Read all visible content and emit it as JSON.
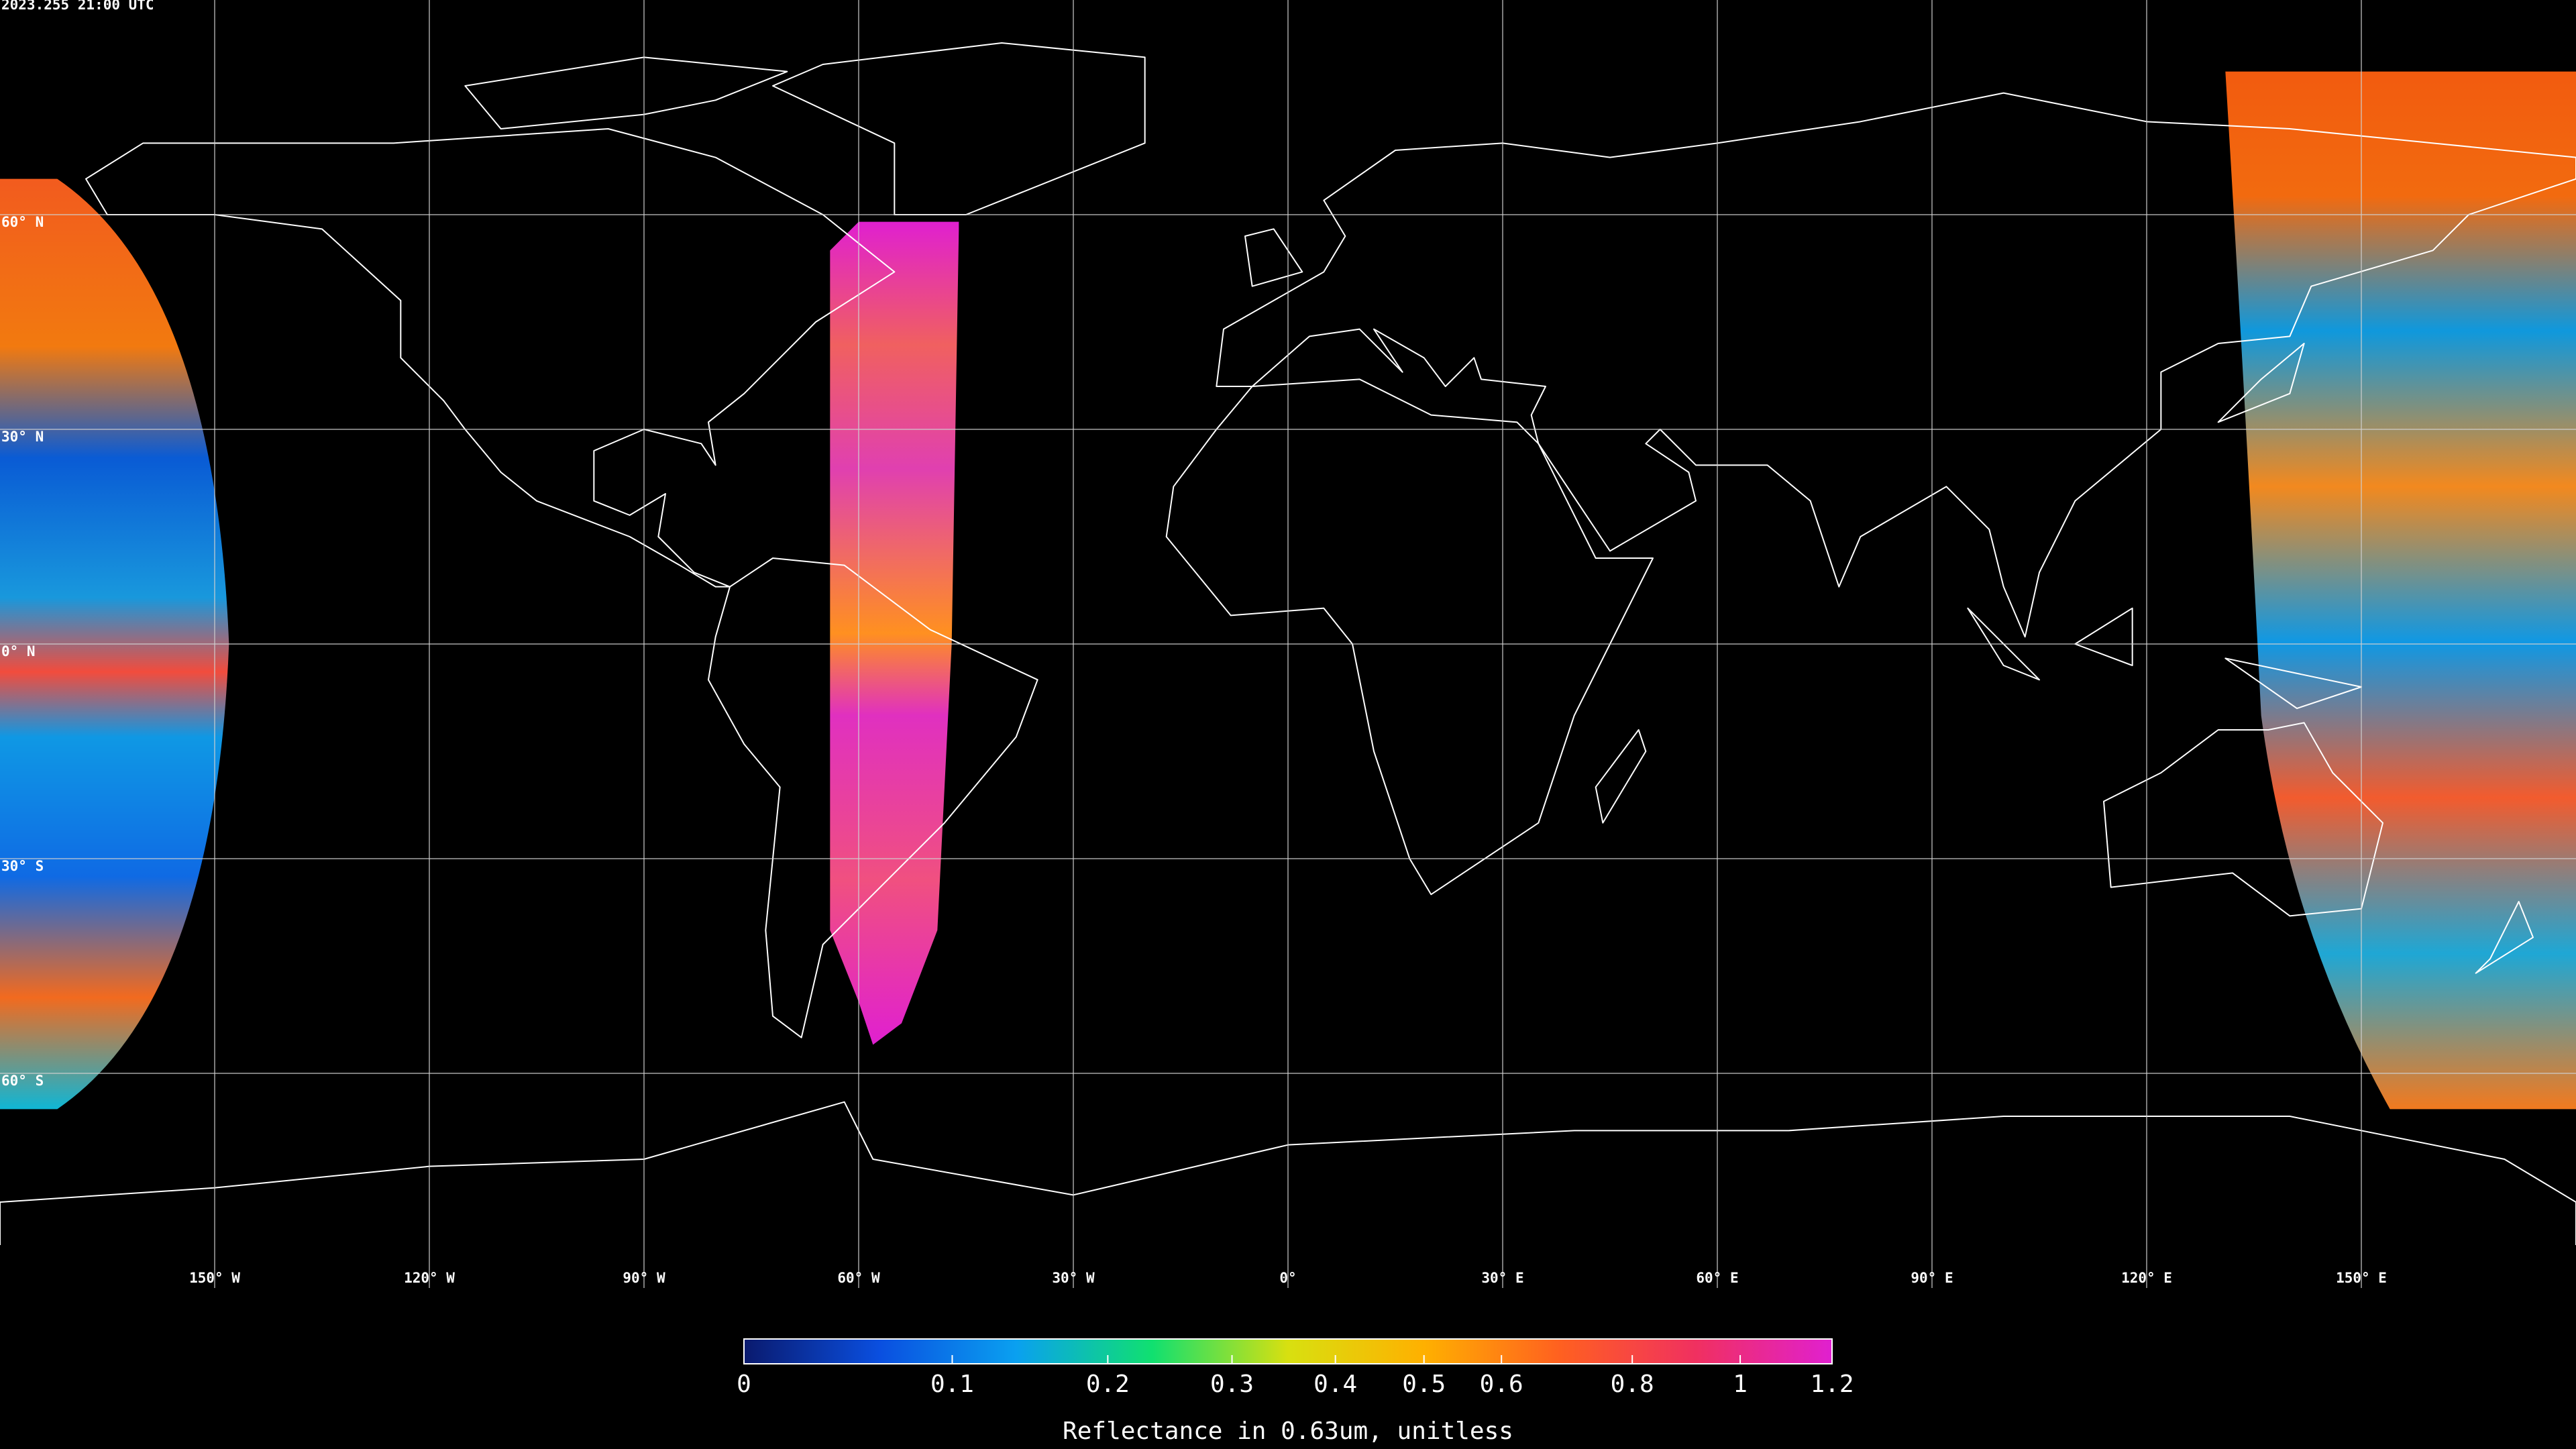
{
  "header": {
    "timestamp": "2023.255 21:00 UTC"
  },
  "map": {
    "latitude_lines": [
      {
        "value": 60,
        "label": "60° N"
      },
      {
        "value": 30,
        "label": "30° N"
      },
      {
        "value": 0,
        "label": "0° N"
      },
      {
        "value": -30,
        "label": "30° S"
      },
      {
        "value": -60,
        "label": "60° S"
      }
    ],
    "longitude_lines": [
      {
        "value": -150,
        "label": "150° W"
      },
      {
        "value": -120,
        "label": "120° W"
      },
      {
        "value": -90,
        "label": "90° W"
      },
      {
        "value": -60,
        "label": "60° W"
      },
      {
        "value": -30,
        "label": "30° W"
      },
      {
        "value": 0,
        "label": "0°"
      },
      {
        "value": 30,
        "label": "30° E"
      },
      {
        "value": 60,
        "label": "60° E"
      },
      {
        "value": 90,
        "label": "90° E"
      },
      {
        "value": 120,
        "label": "120° E"
      },
      {
        "value": 150,
        "label": "150° E"
      }
    ]
  },
  "colorbar": {
    "label": "Reflectance in 0.63um, unitless",
    "lim": [
      0,
      1.2
    ],
    "ticks": [
      0,
      0.1,
      0.2,
      0.3,
      0.4,
      0.5,
      0.6,
      0.8,
      1,
      1.2
    ],
    "colors": [
      "#0a1a6e",
      "#0a4fe0",
      "#0aa0f0",
      "#10e070",
      "#d8e010",
      "#ffb000",
      "#ff6020",
      "#f03060",
      "#e020d0"
    ]
  }
}
